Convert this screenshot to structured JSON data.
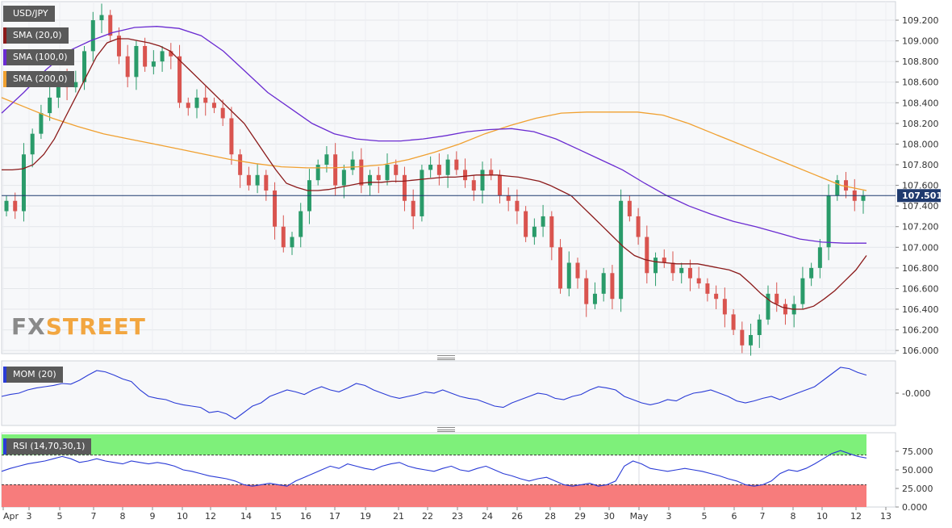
{
  "chart_data": [
    {
      "type": "candlestick",
      "instrument": "USD/JPY",
      "last_price": "107.501",
      "y_ticks": [
        "109.200",
        "109.000",
        "108.800",
        "108.600",
        "108.400",
        "108.200",
        "108.000",
        "107.800",
        "107.600",
        "107.400",
        "107.200",
        "107.000",
        "106.800",
        "106.600",
        "106.400",
        "106.200",
        "106.000"
      ],
      "ylim": [
        105.97,
        109.38
      ],
      "x_ticks": [
        "Apr",
        "3",
        "5",
        "7",
        "8",
        "9",
        "10",
        "12",
        "14",
        "15",
        "16",
        "17",
        "19",
        "21",
        "22",
        "23",
        "24",
        "26",
        "28",
        "29",
        "30",
        "May",
        "3",
        "5",
        "6",
        "7",
        "8",
        "10",
        "12",
        "13"
      ],
      "grid": true,
      "legend": [
        {
          "label": "USD/JPY",
          "color": "#5a5a5a"
        },
        {
          "label": "SMA (20,0)",
          "color": "#8b1a1a"
        },
        {
          "label": "SMA (100,0)",
          "color": "#6a2bd1"
        },
        {
          "label": "SMA (200,0)",
          "color": "#f0a030"
        }
      ],
      "legend_position": "top-left",
      "closes": [
        107.45,
        107.35,
        107.9,
        108.1,
        108.3,
        108.45,
        108.65,
        108.55,
        108.6,
        108.9,
        109.2,
        109.25,
        109.05,
        108.85,
        108.65,
        108.95,
        108.75,
        108.8,
        108.9,
        108.85,
        108.4,
        108.35,
        108.45,
        108.4,
        108.35,
        108.25,
        107.9,
        107.7,
        107.6,
        107.7,
        107.55,
        107.2,
        107.0,
        107.1,
        107.35,
        107.65,
        107.8,
        107.9,
        107.6,
        107.75,
        107.85,
        107.6,
        107.7,
        107.65,
        107.8,
        107.7,
        107.45,
        107.3,
        107.75,
        107.8,
        107.7,
        107.85,
        107.75,
        107.65,
        107.55,
        107.75,
        107.7,
        107.5,
        107.45,
        107.35,
        107.1,
        107.2,
        107.3,
        107.0,
        106.6,
        106.85,
        106.7,
        106.45,
        106.55,
        106.75,
        106.5,
        107.45,
        107.3,
        107.1,
        106.75,
        106.9,
        106.85,
        106.75,
        106.8,
        106.7,
        106.65,
        106.55,
        106.5,
        106.35,
        106.2,
        106.05,
        106.15,
        106.3,
        106.55,
        106.45,
        106.35,
        106.45,
        106.7,
        106.8,
        107.0,
        107.5,
        107.65,
        107.55,
        107.45,
        107.5
      ],
      "sma20": [
        107.75,
        107.75,
        107.76,
        107.8,
        107.9,
        108.05,
        108.25,
        108.45,
        108.65,
        108.85,
        108.98,
        109.02,
        109.02,
        109.0,
        108.98,
        108.95,
        108.9,
        108.8,
        108.7,
        108.6,
        108.5,
        108.4,
        108.3,
        108.2,
        108.05,
        107.9,
        107.75,
        107.62,
        107.58,
        107.55,
        107.55,
        107.56,
        107.58,
        107.6,
        107.62,
        107.63,
        107.63,
        107.64,
        107.64,
        107.65,
        107.66,
        107.67,
        107.68,
        107.68,
        107.69,
        107.7,
        107.7,
        107.7,
        107.69,
        107.68,
        107.66,
        107.64,
        107.6,
        107.55,
        107.5,
        107.4,
        107.3,
        107.2,
        107.1,
        107.0,
        106.92,
        106.88,
        106.86,
        106.85,
        106.84,
        106.84,
        106.84,
        106.82,
        106.8,
        106.78,
        106.74,
        106.65,
        106.55,
        106.47,
        106.42,
        106.4,
        106.4,
        106.43,
        106.5,
        106.58,
        106.68,
        106.78,
        106.92
      ],
      "sma100": [
        108.3,
        108.5,
        108.72,
        108.9,
        109.0,
        109.08,
        109.13,
        109.14,
        109.12,
        109.05,
        108.9,
        108.7,
        108.5,
        108.35,
        108.2,
        108.1,
        108.05,
        108.03,
        108.03,
        108.05,
        108.08,
        108.12,
        108.14,
        108.15,
        108.12,
        108.05,
        107.95,
        107.85,
        107.75,
        107.62,
        107.5,
        107.4,
        107.32,
        107.25,
        107.2,
        107.14,
        107.08,
        107.05,
        107.04,
        107.04
      ],
      "sma200": [
        108.45,
        108.35,
        108.25,
        108.17,
        108.1,
        108.05,
        108.0,
        107.95,
        107.9,
        107.85,
        107.81,
        107.78,
        107.77,
        107.77,
        107.78,
        107.8,
        107.85,
        107.92,
        108.0,
        108.1,
        108.18,
        108.25,
        108.3,
        108.31,
        108.31,
        108.31,
        108.28,
        108.2,
        108.1,
        108.0,
        107.9,
        107.8,
        107.7,
        107.6,
        107.55
      ]
    },
    {
      "type": "line",
      "indicator": "MOM (20)",
      "y_ticks": [
        "-0.000"
      ],
      "zero_level": 0,
      "values": [
        -0.05,
        -0.02,
        0.0,
        0.05,
        0.08,
        0.1,
        0.12,
        0.15,
        0.14,
        0.2,
        0.28,
        0.35,
        0.33,
        0.28,
        0.22,
        0.18,
        0.05,
        -0.05,
        -0.08,
        -0.1,
        -0.15,
        -0.18,
        -0.2,
        -0.22,
        -0.3,
        -0.28,
        -0.32,
        -0.4,
        -0.3,
        -0.2,
        -0.15,
        -0.05,
        0.0,
        0.05,
        0.02,
        -0.02,
        0.05,
        0.1,
        0.05,
        0.02,
        0.08,
        0.15,
        0.12,
        0.05,
        0.0,
        -0.05,
        -0.08,
        -0.05,
        -0.02,
        0.02,
        0.0,
        0.05,
        0.0,
        -0.05,
        -0.08,
        -0.1,
        -0.15,
        -0.2,
        -0.22,
        -0.15,
        -0.1,
        -0.05,
        0.0,
        -0.02,
        -0.08,
        -0.1,
        -0.05,
        -0.02,
        0.05,
        0.1,
        0.08,
        0.05,
        -0.05,
        -0.1,
        -0.15,
        -0.18,
        -0.15,
        -0.1,
        -0.12,
        -0.05,
        0.0,
        0.02,
        0.05,
        0.0,
        -0.05,
        -0.12,
        -0.15,
        -0.12,
        -0.08,
        -0.05,
        -0.1,
        -0.05,
        0.0,
        0.05,
        0.1,
        0.2,
        0.3,
        0.4,
        0.38,
        0.32,
        0.28
      ]
    },
    {
      "type": "line",
      "indicator": "RSI (14,70,30,1)",
      "y_ticks": [
        "75.000",
        "50.000",
        "25.000",
        "0.000"
      ],
      "ylim": [
        0,
        100
      ],
      "overbought": 70,
      "oversold": 30,
      "zone_colors": {
        "overbought": "#7ef07a",
        "oversold": "#f77c7c"
      },
      "values": [
        48,
        52,
        55,
        58,
        60,
        62,
        65,
        68,
        65,
        60,
        62,
        65,
        62,
        60,
        58,
        62,
        60,
        58,
        60,
        58,
        55,
        50,
        48,
        45,
        42,
        40,
        38,
        35,
        30,
        28,
        30,
        32,
        30,
        28,
        35,
        40,
        45,
        50,
        55,
        52,
        58,
        55,
        52,
        50,
        55,
        58,
        60,
        55,
        52,
        50,
        48,
        52,
        55,
        50,
        48,
        52,
        55,
        50,
        45,
        42,
        38,
        35,
        38,
        40,
        35,
        30,
        28,
        30,
        32,
        28,
        30,
        35,
        55,
        62,
        58,
        52,
        50,
        48,
        50,
        52,
        50,
        48,
        45,
        42,
        38,
        35,
        30,
        28,
        30,
        35,
        45,
        50,
        48,
        52,
        58,
        65,
        72,
        76,
        72,
        68,
        66
      ]
    }
  ]
}
